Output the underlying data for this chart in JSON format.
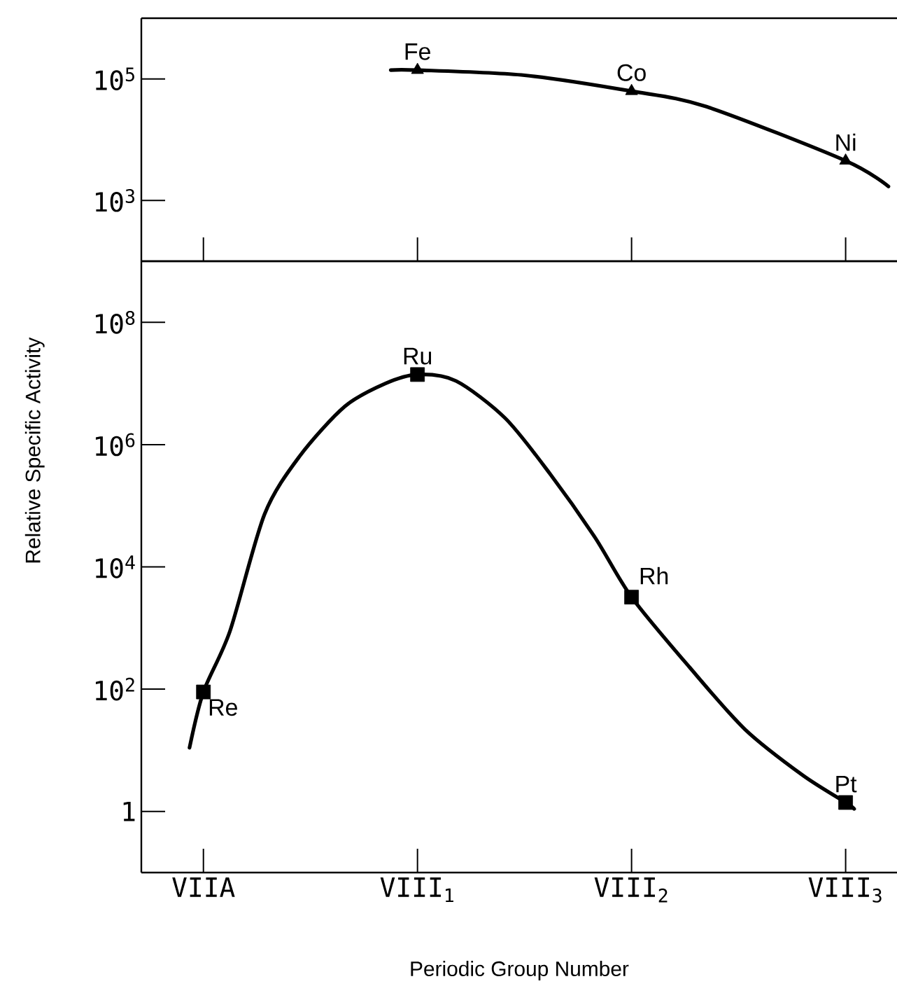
{
  "chart_data": [
    {
      "type": "line",
      "xlim": [
        -0.29,
        3.24
      ],
      "ylim": [
        100,
        1000000
      ],
      "log": "y",
      "tick_labels": "y",
      "xticks": [
        {
          "value": 0,
          "label": null
        },
        {
          "value": 1,
          "label": null
        },
        {
          "value": 2,
          "label": null
        },
        {
          "value": 3,
          "label": null
        }
      ],
      "yticks": [
        {
          "value": 1000,
          "label": "10$^{3}$"
        },
        {
          "value": 100000,
          "label": "10$^{5}$"
        }
      ],
      "series": [
        {
          "type": "line",
          "color": "#000000",
          "marker": "none",
          "line_style": "solid",
          "x": [
            0.875,
            1.0,
            1.5,
            2.0,
            2.35,
            3.0,
            3.2
          ],
          "values": [
            140000,
            140000,
            115000,
            63000,
            35000,
            4500,
            1700
          ]
        },
        {
          "type": "scatter",
          "color": "#000000",
          "marker": "triangle",
          "x": [
            1,
            2,
            3
          ],
          "values": [
            140000,
            63000,
            4500
          ]
        }
      ],
      "annotations": [
        {
          "text": "Fe",
          "x": 1,
          "y": 140000
        },
        {
          "text": "Co",
          "x": 2,
          "y": 63000
        },
        {
          "text": "Ni",
          "x": 3,
          "y": 4500
        }
      ]
    },
    {
      "type": "line",
      "xlim": [
        -0.29,
        3.24
      ],
      "ylim": [
        0.1,
        1000000000
      ],
      "log": "y",
      "xlabel": "Periodic Group Number",
      "ylabel": "Relative Specific Activity",
      "xticks": [
        {
          "value": 0,
          "label": "VIIA"
        },
        {
          "value": 1,
          "label": "VIII$_{1}$"
        },
        {
          "value": 2,
          "label": "VIII$_{2}$"
        },
        {
          "value": 3,
          "label": "VIII$_{3}$"
        }
      ],
      "yticks": [
        1,
        {
          "value": 100,
          "label": "10$^{2}$"
        },
        {
          "value": 10000,
          "label": "10$^{4}$"
        },
        {
          "value": 1000000,
          "label": "10$^{6}$"
        },
        {
          "value": 100000000,
          "label": "10$^{8}$"
        }
      ],
      "series": [
        {
          "type": "line",
          "color": "#000000",
          "marker": "none",
          "line_style": "solid",
          "x": [
            -0.065,
            0.0,
            0.124,
            0.285,
            0.45,
            0.66,
            0.85,
            1.0,
            1.18,
            1.41,
            1.62,
            1.83,
            2.0,
            2.27,
            2.53,
            2.8,
            3.0,
            3.04
          ],
          "values": [
            11,
            90,
            890,
            72000,
            650000,
            4200000,
            10000000,
            14000000,
            11000000,
            2700000,
            330000,
            30000,
            3200,
            230,
            22,
            3.9,
            1.4,
            1.1
          ]
        },
        {
          "type": "scatter",
          "color": "#000000",
          "marker": "square",
          "x": [
            0,
            1,
            2,
            3
          ],
          "values": [
            90,
            14000000,
            3200,
            1.4
          ]
        }
      ],
      "annotations": [
        {
          "text": "Re",
          "x": 0,
          "y": 90
        },
        {
          "text": "Ru",
          "x": 1,
          "y": 14000000
        },
        {
          "text": "Rh",
          "x": 2,
          "y": 3200
        },
        {
          "text": "Pt",
          "x": 3,
          "y": 1.4
        }
      ]
    }
  ]
}
